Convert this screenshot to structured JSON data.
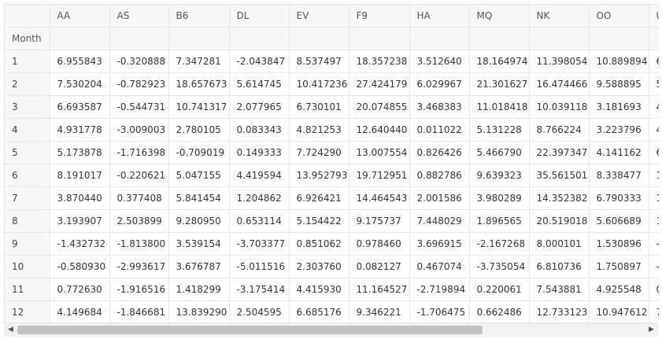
{
  "table": {
    "columns": [
      "",
      "AA",
      "AS",
      "B6",
      "DL",
      "EV",
      "F9",
      "HA",
      "MQ",
      "NK",
      "OO",
      "U"
    ],
    "index_name": "Month",
    "rows": [
      {
        "label": "1",
        "cells": [
          "6.955843",
          "-0.320888",
          "7.347281",
          "-2.043847",
          "8.537497",
          "18.357238",
          "3.512640",
          "18.164974",
          "11.398054",
          "10.889894",
          "6"
        ]
      },
      {
        "label": "2",
        "cells": [
          "7.530204",
          "-0.782923",
          "18.657673",
          "5.614745",
          "10.417236",
          "27.424179",
          "6.029967",
          "21.301627",
          "16.474466",
          "9.588895",
          "5"
        ]
      },
      {
        "label": "3",
        "cells": [
          "6.693587",
          "-0.544731",
          "10.741317",
          "2.077965",
          "6.730101",
          "20.074855",
          "3.468383",
          "11.018418",
          "10.039118",
          "3.181693",
          "4"
        ]
      },
      {
        "label": "4",
        "cells": [
          "4.931778",
          "-3.009003",
          "2.780105",
          "0.083343",
          "4.821253",
          "12.640440",
          "0.011022",
          "5.131228",
          "8.766224",
          "3.223796",
          "4"
        ]
      },
      {
        "label": "5",
        "cells": [
          "5.173878",
          "-1.716398",
          "-0.709019",
          "0.149333",
          "7.724290",
          "13.007554",
          "0.826426",
          "5.466790",
          "22.397347",
          "4.141162",
          "6"
        ]
      },
      {
        "label": "6",
        "cells": [
          "8.191017",
          "-0.220621",
          "5.047155",
          "4.419594",
          "13.952793",
          "19.712951",
          "0.882786",
          "9.639323",
          "35.561501",
          "8.338477",
          "1"
        ]
      },
      {
        "label": "7",
        "cells": [
          "3.870440",
          "0.377408",
          "5.841454",
          "1.204862",
          "6.926421",
          "14.464543",
          "2.001586",
          "3.980289",
          "14.352382",
          "6.790333",
          "1"
        ]
      },
      {
        "label": "8",
        "cells": [
          "3.193907",
          "2.503899",
          "9.280950",
          "0.653114",
          "5.154422",
          "9.175737",
          "7.448029",
          "1.896565",
          "20.519018",
          "5.606689",
          "1"
        ]
      },
      {
        "label": "9",
        "cells": [
          "-1.432732",
          "-1.813800",
          "3.539154",
          "-3.703377",
          "0.851062",
          "0.978460",
          "3.696915",
          "-2.167268",
          "8.000101",
          "1.530896",
          "-"
        ]
      },
      {
        "label": "10",
        "cells": [
          "-0.580930",
          "-2.993617",
          "3.676787",
          "-5.011516",
          "2.303760",
          "0.082127",
          "0.467074",
          "-3.735054",
          "6.810736",
          "1.750897",
          "-"
        ]
      },
      {
        "label": "11",
        "cells": [
          "0.772630",
          "-1.916516",
          "1.418299",
          "-3.175414",
          "4.415930",
          "11.164527",
          "-2.719894",
          "0.220061",
          "7.543881",
          "4.925548",
          "0"
        ]
      },
      {
        "label": "12",
        "cells": [
          "4.149684",
          "-1.846681",
          "13.839290",
          "2.504595",
          "6.685176",
          "9.346221",
          "-1.706475",
          "0.662486",
          "12.733123",
          "10.947612",
          "7"
        ]
      }
    ]
  },
  "scroll": {
    "left_arrow": "◀",
    "right_arrow": "▶"
  }
}
